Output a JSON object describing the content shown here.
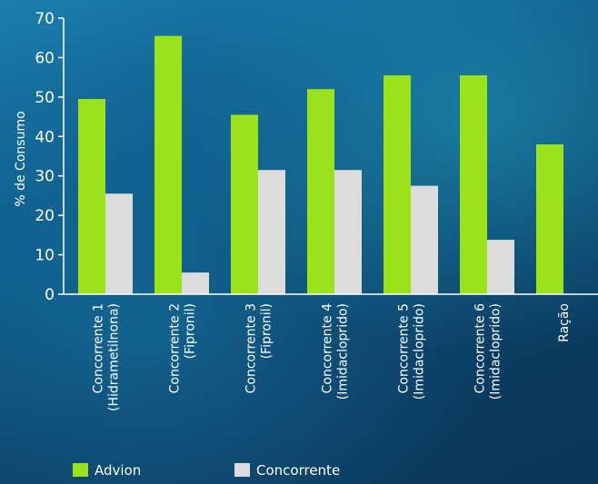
{
  "chart_data": {
    "type": "bar",
    "title": "",
    "xlabel": "",
    "ylabel": "% de Consumo",
    "ylim": [
      0,
      70
    ],
    "yticks": [
      0,
      10,
      20,
      30,
      40,
      50,
      60,
      70
    ],
    "grid": false,
    "legend_position": "bottom",
    "categories": [
      [
        "Concorrente 1",
        "(Hidrametilnona)"
      ],
      [
        "Concorrente 2",
        "(Fipronil)"
      ],
      [
        "Concorrente 3",
        "(Fipronil)"
      ],
      [
        "Concorrente 4",
        "(Imidacloprido)"
      ],
      [
        "Concorrente 5",
        "(Imidacloprido)"
      ],
      [
        "Concorrente 6",
        "(Imidacloprido)"
      ],
      [
        "Ração"
      ]
    ],
    "series": [
      {
        "name": "Advion",
        "color": "#9be21a",
        "values": [
          49.5,
          65.5,
          45.5,
          52,
          55.5,
          55.5,
          38
        ]
      },
      {
        "name": "Concorrente",
        "color": "#dcdcdc",
        "values": [
          25.5,
          5.5,
          31.5,
          31.5,
          27.5,
          13.8,
          null
        ]
      }
    ]
  }
}
